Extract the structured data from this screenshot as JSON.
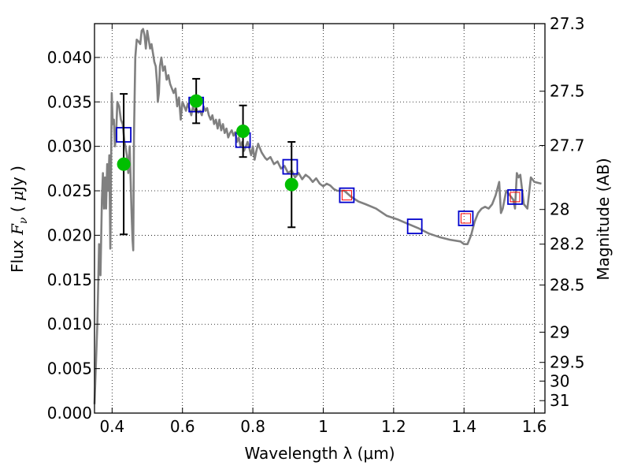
{
  "chart_data": {
    "type": "scatter",
    "xlabel": "Wavelength  λ (μm)",
    "ylabel": "Flux  F_ν  ( μJy )",
    "ylabel_parts": [
      "Flux  ",
      "F",
      "ν",
      "  ( ",
      "μ",
      "Jy )"
    ],
    "y2label": "Magnitude (AB)",
    "xlim": [
      0.35,
      1.63
    ],
    "ylim": [
      0.0,
      0.0438
    ],
    "grid": true,
    "x_ticks": [
      0.4,
      0.6,
      0.8,
      1.0,
      1.2,
      1.4,
      1.6
    ],
    "x_tick_labels": [
      "0.4",
      "0.6",
      "0.8",
      "1",
      "1.2",
      "1.4",
      "1.6"
    ],
    "y_ticks": [
      0.0,
      0.005,
      0.01,
      0.015,
      0.02,
      0.025,
      0.03,
      0.035,
      0.04
    ],
    "y_tick_labels": [
      "0.000",
      "0.005",
      "0.010",
      "0.015",
      "0.020",
      "0.025",
      "0.030",
      "0.035",
      "0.040"
    ],
    "y2_ticks": [
      {
        "flux": 0.0438,
        "label": "27.3"
      },
      {
        "flux": 0.0362,
        "label": "27.5"
      },
      {
        "flux": 0.0301,
        "label": "27.7"
      },
      {
        "flux": 0.0229,
        "label": "28"
      },
      {
        "flux": 0.019,
        "label": "28.2"
      },
      {
        "flux": 0.0144,
        "label": "28.5"
      },
      {
        "flux": 0.0091,
        "label": "29"
      },
      {
        "flux": 0.0057,
        "label": "29.5"
      },
      {
        "flux": 0.0036,
        "label": "30"
      },
      {
        "flux": 0.0014,
        "label": "31"
      }
    ],
    "series": [
      {
        "kind": "template-spectrum-line",
        "color": "#808080",
        "x": [
          0.35,
          0.358,
          0.363,
          0.367,
          0.371,
          0.374,
          0.377,
          0.38,
          0.383,
          0.386,
          0.389,
          0.392,
          0.395,
          0.399,
          0.402,
          0.405,
          0.408,
          0.411,
          0.415,
          0.42,
          0.425,
          0.43,
          0.435,
          0.438,
          0.442,
          0.446,
          0.45,
          0.455,
          0.458,
          0.46,
          0.462,
          0.466,
          0.47,
          0.475,
          0.48,
          0.484,
          0.488,
          0.492,
          0.496,
          0.5,
          0.504,
          0.508,
          0.512,
          0.516,
          0.52,
          0.524,
          0.528,
          0.53,
          0.533,
          0.536,
          0.54,
          0.545,
          0.55,
          0.555,
          0.56,
          0.565,
          0.57,
          0.575,
          0.58,
          0.585,
          0.59,
          0.595,
          0.6,
          0.605,
          0.61,
          0.615,
          0.62,
          0.625,
          0.63,
          0.635,
          0.64,
          0.645,
          0.65,
          0.655,
          0.66,
          0.665,
          0.67,
          0.675,
          0.68,
          0.685,
          0.69,
          0.695,
          0.7,
          0.705,
          0.71,
          0.715,
          0.72,
          0.725,
          0.73,
          0.735,
          0.74,
          0.745,
          0.75,
          0.755,
          0.76,
          0.765,
          0.77,
          0.775,
          0.78,
          0.785,
          0.79,
          0.795,
          0.8,
          0.805,
          0.81,
          0.815,
          0.82,
          0.825,
          0.83,
          0.835,
          0.84,
          0.85,
          0.86,
          0.87,
          0.88,
          0.89,
          0.9,
          0.91,
          0.92,
          0.93,
          0.94,
          0.95,
          0.96,
          0.97,
          0.98,
          0.99,
          1.0,
          1.01,
          1.02,
          1.03,
          1.04,
          1.06,
          1.08,
          1.1,
          1.12,
          1.15,
          1.18,
          1.21,
          1.24,
          1.27,
          1.3,
          1.33,
          1.36,
          1.39,
          1.4,
          1.41,
          1.42,
          1.43,
          1.44,
          1.45,
          1.46,
          1.47,
          1.48,
          1.49,
          1.5,
          1.505,
          1.51,
          1.52,
          1.53,
          1.54,
          1.545,
          1.55,
          1.555,
          1.56,
          1.57,
          1.58,
          1.59,
          1.6,
          1.62
        ],
        "y": [
          0.001,
          0.01,
          0.019,
          0.0155,
          0.024,
          0.027,
          0.023,
          0.0265,
          0.023,
          0.028,
          0.025,
          0.029,
          0.0185,
          0.036,
          0.0325,
          0.033,
          0.03,
          0.031,
          0.035,
          0.0345,
          0.033,
          0.0325,
          0.0305,
          0.03,
          0.029,
          0.027,
          0.03,
          0.023,
          0.0195,
          0.0183,
          0.031,
          0.04,
          0.042,
          0.0418,
          0.0415,
          0.043,
          0.0432,
          0.0425,
          0.041,
          0.043,
          0.042,
          0.041,
          0.0415,
          0.0405,
          0.0395,
          0.039,
          0.037,
          0.035,
          0.036,
          0.039,
          0.04,
          0.0385,
          0.039,
          0.0375,
          0.038,
          0.037,
          0.0365,
          0.036,
          0.0365,
          0.0345,
          0.0355,
          0.033,
          0.035,
          0.0345,
          0.034,
          0.0348,
          0.0342,
          0.0335,
          0.0345,
          0.034,
          0.0342,
          0.0338,
          0.034,
          0.0335,
          0.0345,
          0.034,
          0.0343,
          0.0335,
          0.033,
          0.0335,
          0.0325,
          0.033,
          0.032,
          0.033,
          0.0318,
          0.0325,
          0.0315,
          0.032,
          0.031,
          0.0315,
          0.0318,
          0.0312,
          0.0316,
          0.0305,
          0.031,
          0.03,
          0.0305,
          0.0295,
          0.03,
          0.0305,
          0.0298,
          0.029,
          0.03,
          0.0285,
          0.0295,
          0.0303,
          0.0298,
          0.0293,
          0.029,
          0.0287,
          0.0285,
          0.0288,
          0.028,
          0.0283,
          0.0275,
          0.0278,
          0.027,
          0.0273,
          0.0265,
          0.027,
          0.0263,
          0.0268,
          0.0265,
          0.026,
          0.0264,
          0.0258,
          0.0255,
          0.0258,
          0.0256,
          0.0252,
          0.025,
          0.025,
          0.0243,
          0.0238,
          0.0235,
          0.023,
          0.0222,
          0.0218,
          0.0213,
          0.0208,
          0.0202,
          0.0198,
          0.0195,
          0.0193,
          0.019,
          0.019,
          0.02,
          0.0215,
          0.0225,
          0.023,
          0.0232,
          0.023,
          0.0235,
          0.0245,
          0.026,
          0.0225,
          0.023,
          0.025,
          0.0245,
          0.024,
          0.023,
          0.027,
          0.0265,
          0.0268,
          0.0235,
          0.023,
          0.0265,
          0.026,
          0.0258
        ]
      },
      {
        "kind": "observed-flux-points",
        "color": "#00bf00",
        "x": [
          0.433,
          0.639,
          0.772,
          0.91
        ],
        "y": [
          0.028,
          0.0351,
          0.0317,
          0.0257
        ],
        "yerr": [
          0.0079,
          0.0025,
          0.0029,
          0.0048
        ]
      },
      {
        "kind": "model-flux-squares",
        "color": "#0000cc",
        "x": [
          0.433,
          0.639,
          0.772,
          0.906,
          1.067,
          1.26,
          1.405,
          1.545
        ],
        "y": [
          0.0313,
          0.0347,
          0.0307,
          0.0277,
          0.0245,
          0.021,
          0.0219,
          0.0243
        ]
      },
      {
        "kind": "upper-limit-squares",
        "color": "#ff0000",
        "x": [
          1.067,
          1.405,
          1.545
        ],
        "y": [
          0.0245,
          0.0219,
          0.0243
        ]
      }
    ]
  }
}
